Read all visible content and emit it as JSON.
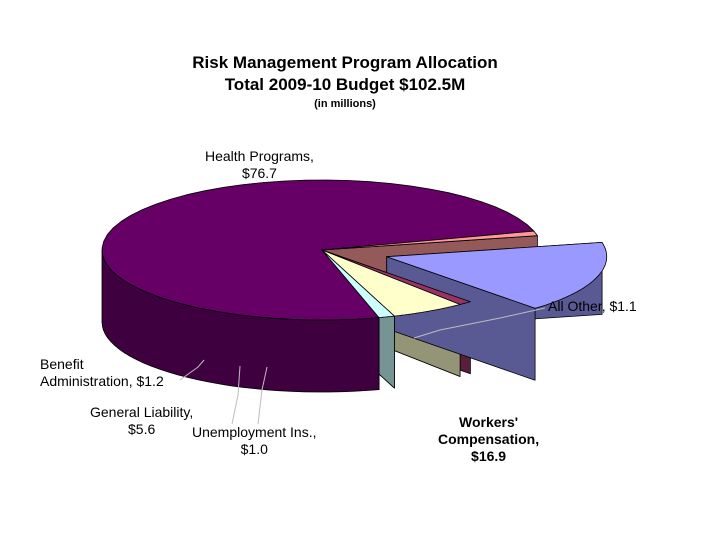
{
  "chart_data": {
    "type": "pie",
    "title_lines": [
      "Risk Management Program Allocation",
      "Total 2009-10 Budget $102.5M"
    ],
    "subtitle": "(in millions)",
    "slices": [
      {
        "name": "Health Programs",
        "value": 76.7,
        "color": "#660066",
        "label_lines": [
          "Health Programs,",
          "$76.7"
        ]
      },
      {
        "name": "All Other",
        "value": 1.1,
        "color": "#FF9999",
        "label_lines": [
          "All Other,  $1.1"
        ]
      },
      {
        "name": "Workers' Compensation",
        "value": 16.9,
        "color": "#9999FF",
        "exploded": true,
        "label_lines": [
          "Workers'",
          "Compensation,",
          "$16.9"
        ]
      },
      {
        "name": "Unemployment Ins.",
        "value": 1.0,
        "color": "#993366",
        "label_lines": [
          "Unemployment Ins.,",
          "$1.0"
        ]
      },
      {
        "name": "General Liability",
        "value": 5.6,
        "color": "#FFFFCC",
        "label_lines": [
          "General Liability,",
          "$5.6"
        ]
      },
      {
        "name": "Benefit Administration",
        "value": 1.2,
        "color": "#CCFFFF",
        "label_lines": [
          "Benefit",
          "Administration,  $1.2"
        ]
      }
    ]
  }
}
